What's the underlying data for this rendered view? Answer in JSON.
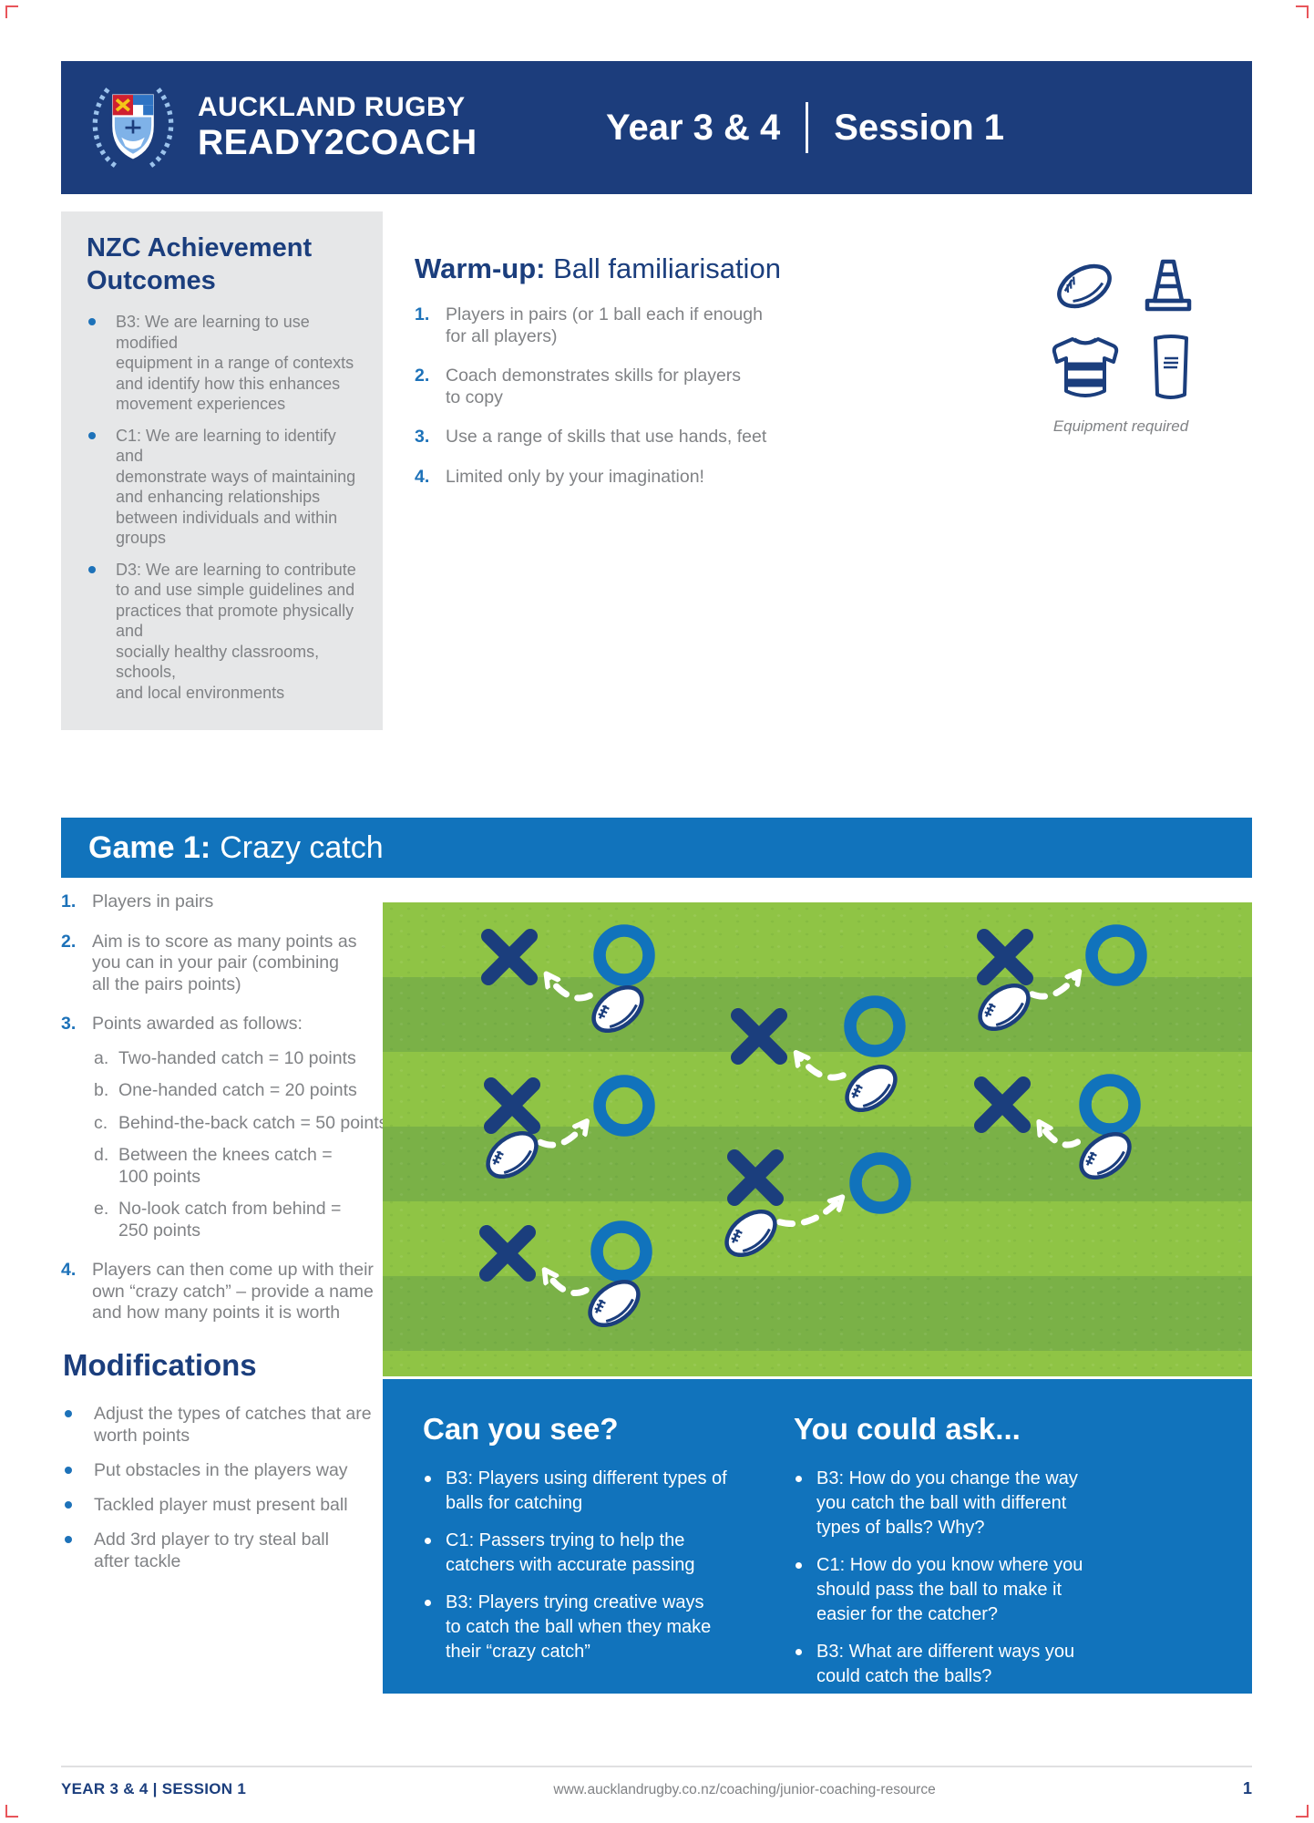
{
  "header": {
    "brand_line1": "AUCKLAND RUGBY",
    "brand_line2": "READY2COACH",
    "year_label": "Year 3 & 4",
    "session_label": "Session 1",
    "background": "#1c3d7c"
  },
  "nzc": {
    "heading": "NZC Achievement Outcomes",
    "bullets": [
      {
        "lines": [
          "B3: We are learning to use modified",
          "equipment in a range of contexts",
          "and identify how this enhances",
          "movement experiences"
        ]
      },
      {
        "lines": [
          "C1: We are learning to identify and",
          "demonstrate ways of maintaining",
          "and enhancing relationships",
          "between individuals and within",
          "groups"
        ]
      },
      {
        "lines": [
          "D3: We are learning to contribute",
          "to and use simple guidelines and",
          "practices that promote physically and",
          "socially healthy classrooms, schools,",
          "and local environments"
        ]
      }
    ]
  },
  "warmup": {
    "heading_bold": "Warm-up:",
    "heading_rest": " Ball familiarisation",
    "items": [
      {
        "num": "1.",
        "lines": [
          "Players in pairs (or 1 ball each if enough",
          "for all players)"
        ]
      },
      {
        "num": "2.",
        "lines": [
          "Coach demonstrates skills for players",
          "to copy"
        ]
      },
      {
        "num": "3.",
        "lines": [
          "Use a range of skills that use hands, feet"
        ]
      },
      {
        "num": "4.",
        "lines": [
          "Limited only by your imagination!"
        ]
      }
    ],
    "equipment_caption": "Equipment required",
    "equipment_icons": [
      "rugby-ball-icon",
      "cone-icon",
      "jersey-icon",
      "tackle-pad-icon"
    ]
  },
  "game1": {
    "heading_bold": "Game 1:",
    "heading_rest": " Crazy catch",
    "items": [
      {
        "num": "1.",
        "lines": [
          "Players in pairs"
        ]
      },
      {
        "num": "2.",
        "lines": [
          "Aim is to score as many points as",
          "you can in your pair (combining",
          "all the pairs points)"
        ]
      },
      {
        "num": "3.",
        "lines": [
          "Points awarded as follows:"
        ]
      },
      {
        "num": "4.",
        "lines": [
          "Players can then come up with their",
          "own “crazy catch” – provide a name",
          "and how many points it is worth"
        ]
      }
    ],
    "points": [
      {
        "letter": "a.",
        "lines": [
          "Two-handed catch = 10 points"
        ]
      },
      {
        "letter": "b.",
        "lines": [
          "One-handed catch = 20 points"
        ]
      },
      {
        "letter": "c.",
        "lines": [
          "Behind-the-back catch = 50 points"
        ]
      },
      {
        "letter": "d.",
        "lines": [
          "Between the knees catch =",
          "100 points"
        ]
      },
      {
        "letter": "e.",
        "lines": [
          "No-look catch from behind =",
          "250 points"
        ]
      }
    ]
  },
  "modifications": {
    "heading": "Modifications",
    "bullets": [
      {
        "lines": [
          "Adjust the types of catches that are",
          "worth points"
        ]
      },
      {
        "lines": [
          "Put obstacles in the players way"
        ]
      },
      {
        "lines": [
          "Tackled player must present ball"
        ]
      },
      {
        "lines": [
          "Add 3rd player to try steal ball",
          "after tackle"
        ]
      }
    ]
  },
  "field": {
    "stripe_light": "#8fc445",
    "stripe_dark": "#7ab147",
    "x_color": "#1b3e7d",
    "o_color": "#1173bc",
    "ball_outline": "#1b3e7d",
    "arrow_color": "#ffffff",
    "pairs": [
      {
        "x": [
          139,
          60
        ],
        "o": [
          265,
          58
        ],
        "ball": [
          258,
          117
        ],
        "arrow_to": "x"
      },
      {
        "x": [
          413,
          147
        ],
        "o": [
          540,
          136
        ],
        "ball": [
          536,
          204
        ],
        "arrow_to": "x"
      },
      {
        "x": [
          683,
          60
        ],
        "o": [
          805,
          58
        ],
        "ball": [
          682,
          115
        ],
        "arrow_to": "o"
      },
      {
        "x": [
          142,
          223
        ],
        "o": [
          265,
          223
        ],
        "ball": [
          142,
          277
        ],
        "arrow_to": "o"
      },
      {
        "x": [
          409,
          302
        ],
        "o": [
          546,
          308
        ],
        "ball": [
          404,
          363
        ],
        "arrow_to": "o"
      },
      {
        "x": [
          680,
          222
        ],
        "o": [
          798,
          222
        ],
        "ball": [
          793,
          278
        ],
        "arrow_to": "x"
      },
      {
        "x": [
          137,
          385
        ],
        "o": [
          262,
          383
        ],
        "ball": [
          254,
          440
        ],
        "arrow_to": "x"
      }
    ]
  },
  "can_you_see": {
    "heading": "Can you see?",
    "bullets": [
      {
        "lines": [
          "B3: Players using different types of",
          "balls for catching"
        ]
      },
      {
        "lines": [
          "C1: Passers trying to help the",
          "catchers with accurate passing"
        ]
      },
      {
        "lines": [
          "B3: Players trying creative ways",
          "to catch the ball when they make",
          "their “crazy catch”"
        ]
      }
    ]
  },
  "you_could_ask": {
    "heading": "You could ask...",
    "bullets": [
      {
        "lines": [
          "B3: How do you change the way",
          "you catch the ball with different",
          "types of balls? Why?"
        ]
      },
      {
        "lines": [
          "C1: How do you know where you",
          "should pass the ball to make it",
          "easier for the catcher?"
        ]
      },
      {
        "lines": [
          "B3: What are different ways you",
          "could catch the balls?"
        ]
      }
    ]
  },
  "footer": {
    "left": "YEAR 3 & 4 | SESSION 1",
    "url": "www.aucklandrugby.co.nz/coaching/junior-coaching-resource",
    "page": "1"
  },
  "colors": {
    "navy": "#1c3d7c",
    "bright_blue": "#1173bc",
    "number_blue": "#1d72b9",
    "body_gray": "#808285",
    "panel_gray": "#e6e7e8"
  }
}
